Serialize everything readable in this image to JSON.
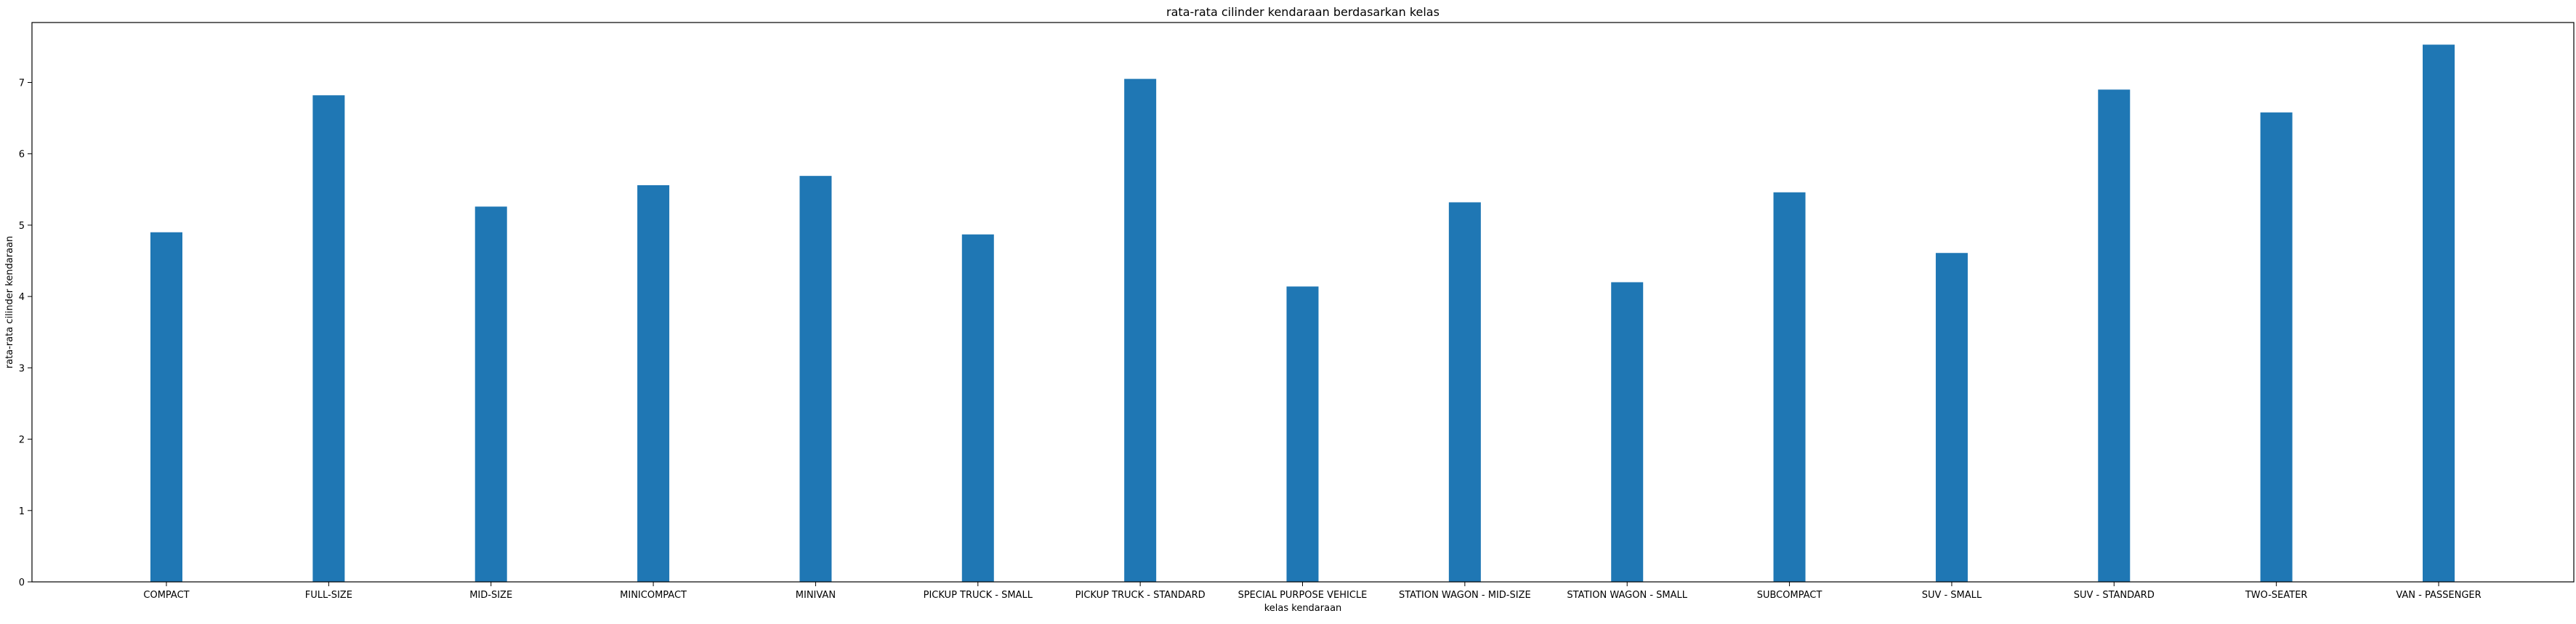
{
  "chart_data": {
    "type": "bar",
    "title": "rata-rata cilinder kendaraan berdasarkan kelas",
    "xlabel": "kelas kendaraan",
    "ylabel": "rata-rata cilinder kendaraan",
    "categories": [
      "COMPACT",
      "FULL-SIZE",
      "MID-SIZE",
      "MINICOMPACT",
      "MINIVAN",
      "PICKUP TRUCK - SMALL",
      "PICKUP TRUCK - STANDARD",
      "SPECIAL PURPOSE VEHICLE",
      "STATION WAGON - MID-SIZE",
      "STATION WAGON - SMALL",
      "SUBCOMPACT",
      "SUV - SMALL",
      "SUV - STANDARD",
      "TWO-SEATER",
      "VAN - PASSENGER"
    ],
    "values": [
      4.9,
      6.82,
      5.26,
      5.56,
      5.69,
      4.87,
      7.05,
      4.14,
      5.32,
      4.2,
      5.46,
      4.61,
      6.9,
      6.58,
      7.53
    ],
    "ylim": [
      0,
      7.84
    ],
    "yticks": [
      0,
      1,
      2,
      3,
      4,
      5,
      6,
      7
    ],
    "ytick_labels": [
      "0",
      "1",
      "2",
      "3",
      "4",
      "5",
      "6",
      "7"
    ],
    "grid": false,
    "legend": "none",
    "bar_color": "#1f77b4"
  }
}
